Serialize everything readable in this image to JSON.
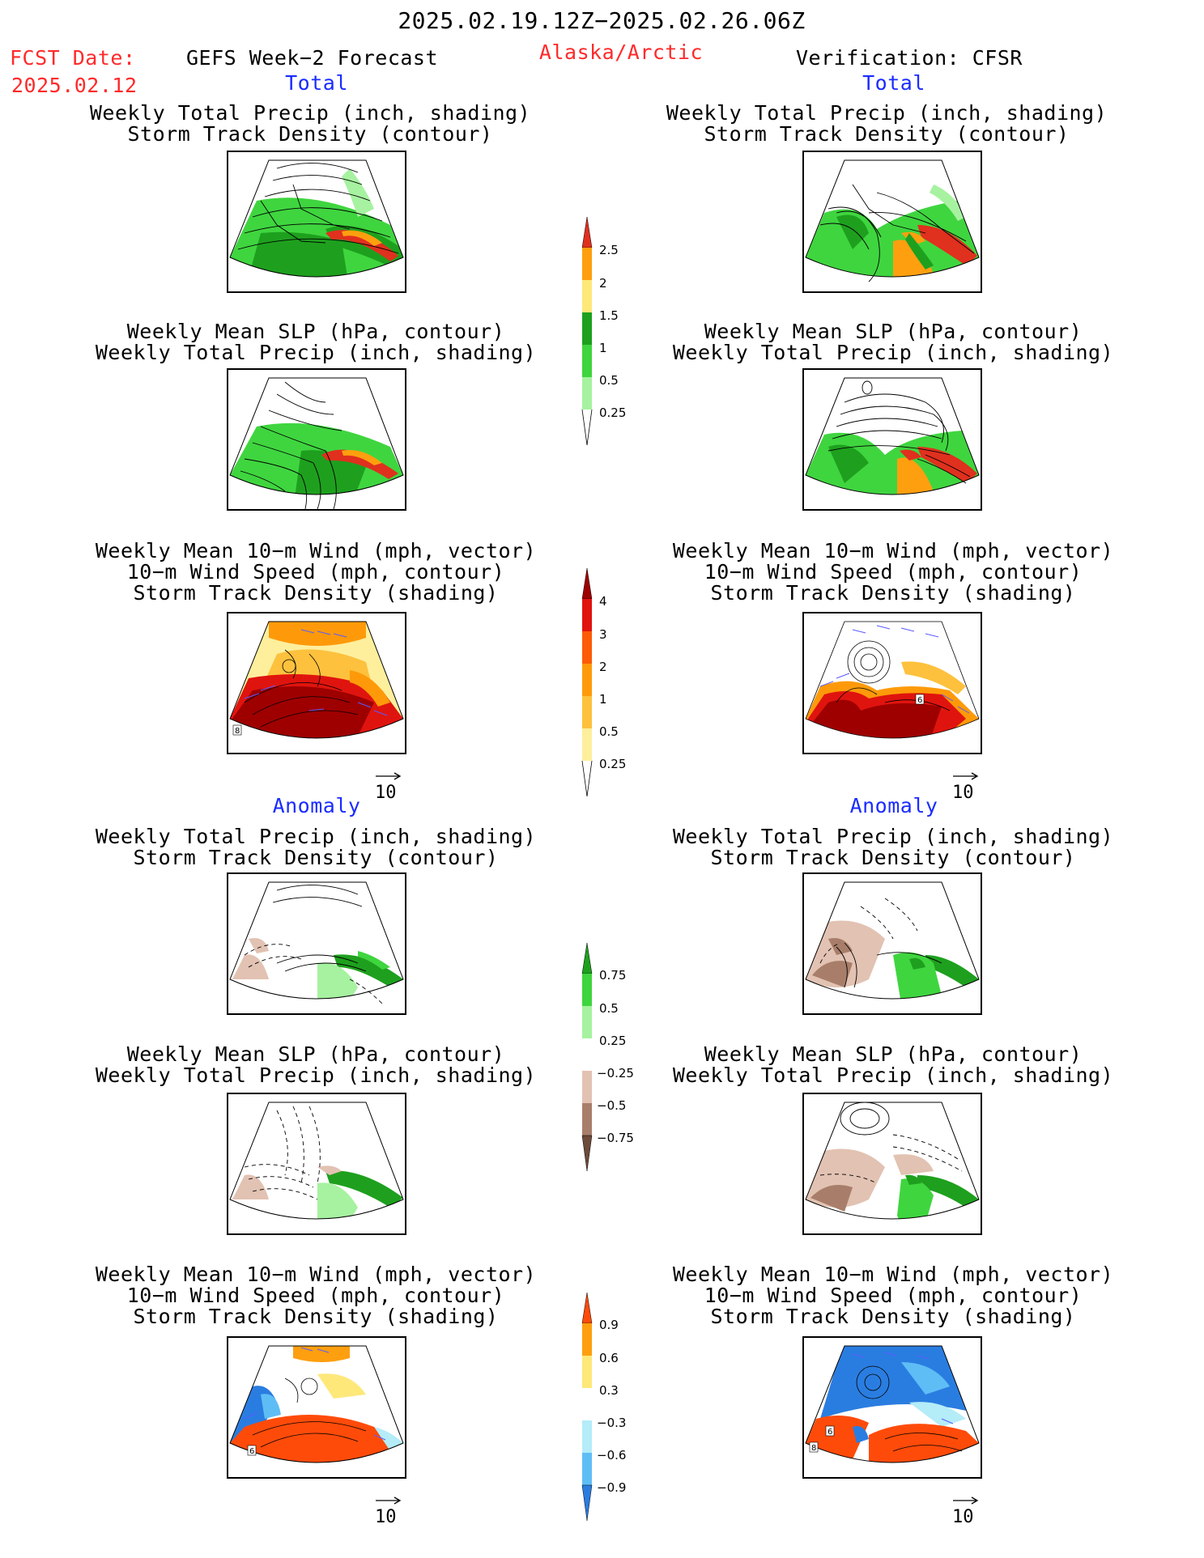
{
  "header": {
    "date_range": "2025.02.19.12Z−2025.02.26.06Z",
    "fcst_label": "FCST Date:",
    "fcst_date": "2025.02.12",
    "model_title": "GEFS Week−2 Forecast",
    "region": "Alaska/Arctic",
    "verification": "Verification: CFSR"
  },
  "sections": {
    "total_left": "Total",
    "total_right": "Total",
    "anomaly_left": "Anomaly",
    "anomaly_right": "Anomaly"
  },
  "titles": {
    "precip_track": [
      "Weekly Total Precip (inch, shading)",
      "Storm Track Density (contour)"
    ],
    "slp_precip": [
      "Weekly Mean SLP (hPa, contour)",
      "Weekly Total Precip (inch, shading)"
    ],
    "wind": [
      "Weekly Mean 10−m Wind (mph, vector)",
      "10−m Wind Speed (mph, contour)",
      "Storm Track Density (shading)"
    ]
  },
  "vector_ref": "10",
  "colorbars": {
    "precip_total": {
      "labels": [
        "2.5",
        "2",
        "1.5",
        "1",
        "0.5",
        "0.25"
      ],
      "colors": [
        "#e0301e",
        "#fe9f0f",
        "#fee87a",
        "#1ea01e",
        "#3fd53f",
        "#a6f2a0"
      ]
    },
    "track_total": {
      "labels": [
        "4",
        "3",
        "2",
        "1",
        "0.5",
        "0.25"
      ],
      "colors": [
        "#9e0000",
        "#e0140e",
        "#fd5b06",
        "#fe9a0a",
        "#fdc13d",
        "#feef9d"
      ]
    },
    "precip_anom": {
      "labels": [
        "0.75",
        "0.5",
        "0.25",
        "−0.25",
        "−0.5",
        "−0.75"
      ],
      "colors_pos": [
        "#1ea01e",
        "#3fd53f",
        "#a6f2a0"
      ],
      "colors_neg": [
        "#e2c2b2",
        "#a87e6a",
        "#6e4a3a"
      ]
    },
    "track_anom": {
      "labels": [
        "0.9",
        "0.6",
        "0.3",
        "−0.3",
        "−0.6",
        "−0.9"
      ],
      "colors_pos": [
        "#ff4b0a",
        "#fe9f0f",
        "#fee87a"
      ],
      "colors_neg": [
        "#b4ecf8",
        "#5fbdf6",
        "#2a7de0"
      ]
    }
  },
  "panel_labels": {
    "wind_total_left": "8",
    "wind_total_right": "6",
    "wind_anom_left": "6",
    "wind_anom_right_a": "8",
    "wind_anom_right_b": "6"
  }
}
